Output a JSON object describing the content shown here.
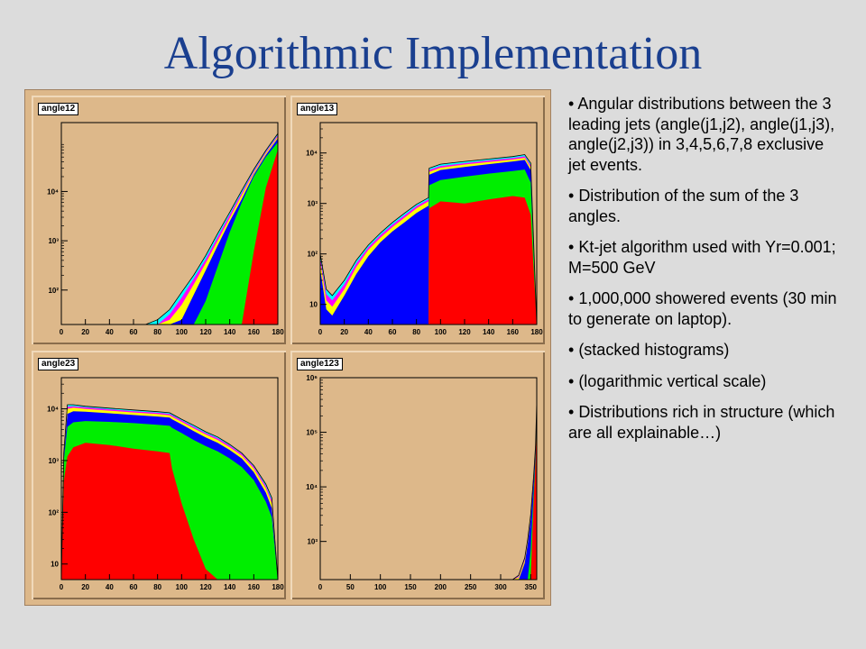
{
  "slide": {
    "title": "Algorithmic Implementation"
  },
  "bullets": [
    "Angular distributions between the 3 leading jets (angle(j1,j2), angle(j1,j3), angle(j2,j3)) in 3,4,5,6,7,8 exclusive jet events.",
    "Distribution of the sum of the 3 angles.",
    "Kt-jet algorithm used with Yr=0.001; M=500 GeV",
    "1,000,000 showered events (30 min to generate on laptop).",
    "(stacked histograms)",
    "(logarithmic vertical scale)",
    "Distributions rich in structure (which are all explainable…)"
  ],
  "colors": {
    "canvas": "#ddb88a",
    "plot_area": "#ddb88a",
    "stack_fill_order_bottom_to_top": [
      "#ff0000",
      "#00ee00",
      "#0000ff",
      "#ffff00",
      "#ff00ff",
      "#00ffff"
    ]
  },
  "chart_data": [
    {
      "type": "area",
      "name": "angle12",
      "y_scale": "log",
      "xlim": [
        0,
        180
      ],
      "ylim": [
        20,
        250000
      ],
      "x_ticks": [
        0,
        20,
        40,
        60,
        80,
        100,
        120,
        140,
        160,
        180
      ],
      "y_ticks": [
        {
          "v": 100,
          "label": "10²"
        },
        {
          "v": 1000,
          "label": "10³"
        },
        {
          "v": 10000,
          "label": "10⁴"
        }
      ],
      "x": [
        70,
        80,
        90,
        100,
        110,
        120,
        130,
        140,
        150,
        160,
        170,
        180
      ],
      "stack_totals": [
        [
          0,
          0,
          0,
          0,
          0,
          0,
          0,
          0,
          0,
          600,
          12000,
          70000
        ],
        [
          0,
          0,
          0,
          0,
          0,
          60,
          300,
          1500,
          6000,
          20000,
          50000,
          100000
        ],
        [
          0,
          0,
          0,
          25,
          80,
          250,
          800,
          2500,
          7000,
          22000,
          55000,
          120000
        ],
        [
          0,
          0,
          25,
          50,
          130,
          350,
          1000,
          2900,
          8500,
          24000,
          60000,
          130000
        ],
        [
          0,
          20,
          32,
          70,
          170,
          420,
          1200,
          3400,
          9500,
          26000,
          64000,
          140000
        ],
        [
          20,
          25,
          40,
          90,
          200,
          500,
          1400,
          3800,
          10500,
          28000,
          68000,
          150000
        ]
      ]
    },
    {
      "type": "area",
      "name": "angle13",
      "y_scale": "log",
      "xlim": [
        0,
        180
      ],
      "ylim": [
        4,
        40000
      ],
      "x_ticks": [
        0,
        20,
        40,
        60,
        80,
        100,
        120,
        140,
        160,
        180
      ],
      "y_ticks": [
        {
          "v": 10,
          "label": "10"
        },
        {
          "v": 100,
          "label": "10²"
        },
        {
          "v": 1000,
          "label": "10³"
        },
        {
          "v": 10000,
          "label": "10⁴"
        }
      ],
      "x": [
        0,
        5,
        10,
        20,
        30,
        40,
        50,
        60,
        70,
        80,
        90,
        90.5,
        100,
        120,
        140,
        160,
        170,
        175,
        180
      ],
      "stack_totals": [
        [
          0,
          0,
          0,
          0,
          0,
          0,
          0,
          0,
          0,
          0,
          0,
          800,
          1100,
          1000,
          1200,
          1400,
          1300,
          600,
          0
        ],
        [
          0,
          0,
          0,
          0,
          0,
          0,
          0,
          0,
          0,
          0,
          0,
          2300,
          2900,
          3400,
          3900,
          4400,
          4700,
          2600,
          0
        ],
        [
          50,
          8,
          6,
          15,
          40,
          90,
          170,
          280,
          420,
          650,
          900,
          3700,
          4600,
          5300,
          6000,
          6800,
          7300,
          4600,
          0
        ],
        [
          70,
          12,
          9,
          20,
          55,
          120,
          210,
          340,
          520,
          800,
          1100,
          4200,
          5100,
          5900,
          6600,
          7400,
          8000,
          5200,
          0
        ],
        [
          85,
          16,
          12,
          25,
          65,
          135,
          235,
          380,
          580,
          880,
          1200,
          4600,
          5500,
          6300,
          7100,
          7900,
          8600,
          5700,
          0
        ],
        [
          100,
          20,
          15,
          30,
          75,
          150,
          260,
          420,
          640,
          960,
          1300,
          5000,
          6000,
          6800,
          7600,
          8500,
          9300,
          6300,
          0
        ]
      ]
    },
    {
      "type": "area",
      "name": "angle23",
      "y_scale": "log",
      "xlim": [
        0,
        180
      ],
      "ylim": [
        5,
        40000
      ],
      "x_ticks": [
        0,
        20,
        40,
        60,
        80,
        100,
        120,
        140,
        160,
        180
      ],
      "y_ticks": [
        {
          "v": 10,
          "label": "10"
        },
        {
          "v": 100,
          "label": "10²"
        },
        {
          "v": 1000,
          "label": "10³"
        },
        {
          "v": 10000,
          "label": "10⁴"
        }
      ],
      "x": [
        0,
        2,
        5,
        10,
        20,
        40,
        60,
        80,
        90,
        92,
        100,
        110,
        120,
        130,
        140,
        150,
        160,
        170,
        175,
        180
      ],
      "stack_totals": [
        [
          0,
          400,
          1200,
          1800,
          2200,
          2000,
          1700,
          1500,
          1400,
          700,
          150,
          30,
          8,
          0,
          0,
          0,
          0,
          0,
          0,
          0
        ],
        [
          0,
          1000,
          4500,
          5500,
          5800,
          5600,
          5300,
          4900,
          4700,
          4300,
          3400,
          2500,
          1900,
          1500,
          1100,
          750,
          420,
          160,
          80,
          0
        ],
        [
          0,
          1200,
          8000,
          9000,
          8800,
          8200,
          7600,
          7100,
          6800,
          6300,
          5000,
          3700,
          2800,
          2200,
          1600,
          1100,
          600,
          240,
          120,
          0
        ],
        [
          0,
          1300,
          10000,
          10500,
          10000,
          9200,
          8500,
          7900,
          7500,
          7000,
          5600,
          4200,
          3200,
          2500,
          1800,
          1250,
          700,
          290,
          150,
          0
        ],
        [
          0,
          1350,
          11000,
          11200,
          10700,
          9800,
          9000,
          8400,
          8000,
          7500,
          6000,
          4500,
          3400,
          2700,
          1950,
          1350,
          760,
          320,
          170,
          0
        ],
        [
          0,
          1400,
          12000,
          12000,
          11200,
          10300,
          9500,
          8800,
          8400,
          7900,
          6300,
          4800,
          3600,
          2850,
          2050,
          1400,
          800,
          350,
          190,
          0
        ]
      ]
    },
    {
      "type": "area",
      "name": "angle123",
      "y_scale": "log",
      "xlim": [
        0,
        360
      ],
      "ylim": [
        200,
        1000000
      ],
      "x_ticks": [
        0,
        50,
        100,
        150,
        200,
        250,
        300,
        350
      ],
      "y_ticks": [
        {
          "v": 1000,
          "label": "10³"
        },
        {
          "v": 10000,
          "label": "10⁴"
        },
        {
          "v": 100000,
          "label": "10⁵"
        },
        {
          "v": 1000000,
          "label": "10⁶"
        }
      ],
      "x": [
        320,
        330,
        340,
        345,
        350,
        355,
        358,
        360
      ],
      "stack_totals": [
        [
          0,
          0,
          0,
          0,
          0,
          6000,
          30000,
          250000
        ],
        [
          0,
          0,
          0,
          200,
          700,
          9000,
          38000,
          280000
        ],
        [
          0,
          200,
          400,
          900,
          2500,
          14000,
          50000,
          330000
        ],
        [
          0,
          220,
          450,
          1000,
          2800,
          15500,
          54000,
          345000
        ],
        [
          0,
          230,
          480,
          1050,
          2950,
          16000,
          56000,
          355000
        ],
        [
          0,
          240,
          500,
          1100,
          3100,
          17000,
          58000,
          365000
        ]
      ]
    }
  ]
}
